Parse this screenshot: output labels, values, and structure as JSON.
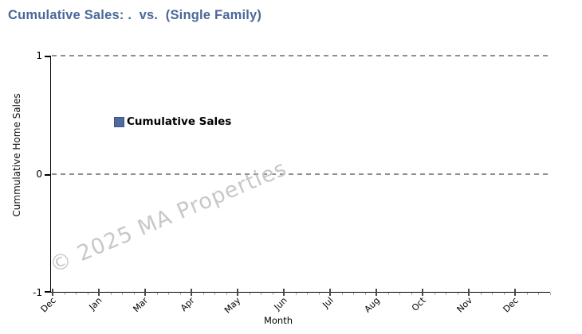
{
  "title": {
    "text": "Cumulative Sales: .  vs.  (Single Family)",
    "color": "#4a6899"
  },
  "legend": {
    "label": "Cumulative Sales",
    "swatch_color": "#4f6b9e"
  },
  "watermark": {
    "text": "© 2025 MA Properties",
    "color": "#c8c8c8"
  },
  "axes": {
    "x": {
      "label": "Month"
    },
    "y": {
      "label": "Cummulative Home Sales"
    }
  },
  "colors": {
    "title": "#4a6899",
    "series": "#4f6b9e",
    "gridline": "#8f8f8f",
    "axis": "#000000",
    "watermark": "#c8c8c8"
  },
  "chart_data": {
    "type": "line",
    "title": "Cumulative Sales: .  vs.  (Single Family)",
    "xlabel": "Month",
    "ylabel": "Cummulative Home Sales",
    "x_tick_labels": [
      "Dec",
      "Jan",
      "Mar",
      "Apr",
      "May",
      "Jun",
      "Jul",
      "Aug",
      "Oct",
      "Nov",
      "Dec"
    ],
    "y_tick_values": [
      1,
      0,
      -1
    ],
    "ylim": [
      -1,
      1
    ],
    "grid": {
      "horizontal_dashed_at": [
        1,
        0
      ],
      "color": "#8f8f8f",
      "style": "dashed"
    },
    "legend": {
      "entries": [
        "Cumulative Sales"
      ],
      "position": "upper-left-inside"
    },
    "series": [
      {
        "name": "Cumulative Sales",
        "color": "#4f6b9e",
        "x": [],
        "values": []
      }
    ],
    "watermark": "© 2025 MA Properties"
  }
}
